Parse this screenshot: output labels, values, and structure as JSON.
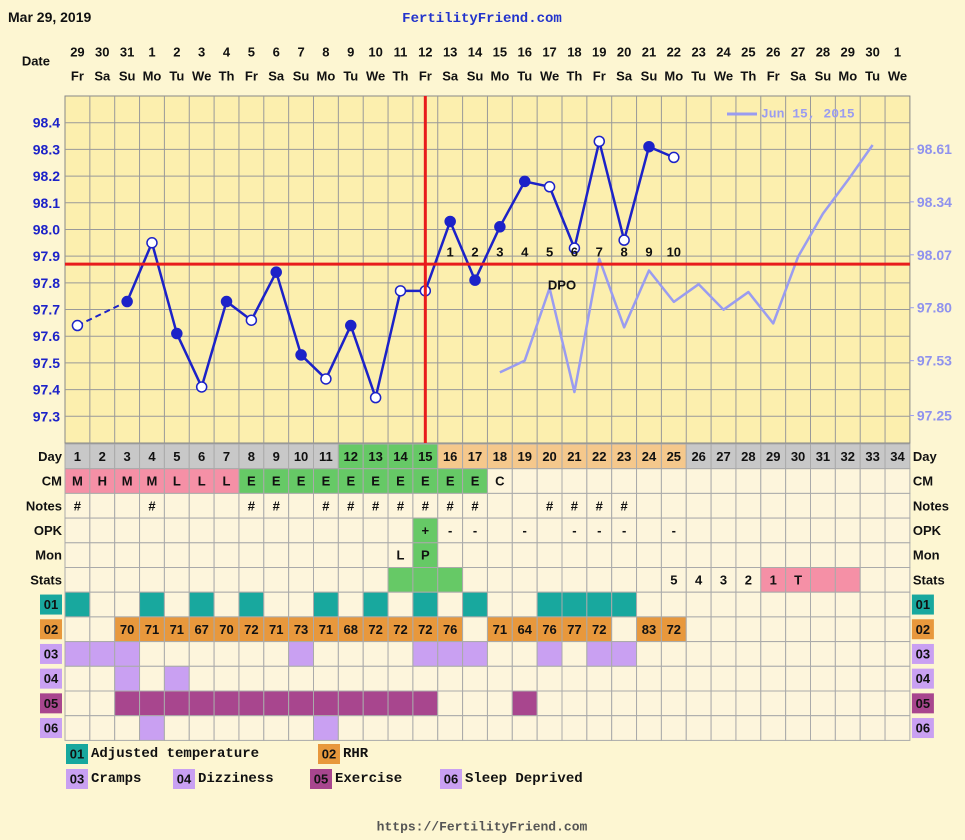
{
  "header": {
    "date": "Mar 29, 2019",
    "site": "FertilityFriend.com",
    "footer": "https://FertilityFriend.com"
  },
  "chart_data": {
    "type": "line",
    "x_label": "Date",
    "categories": [
      "29",
      "30",
      "31",
      "1",
      "2",
      "3",
      "4",
      "5",
      "6",
      "7",
      "8",
      "9",
      "10",
      "11",
      "12",
      "13",
      "14",
      "15",
      "16",
      "17",
      "18",
      "19",
      "20",
      "21",
      "22",
      "23",
      "24",
      "25",
      "26",
      "27",
      "28",
      "29",
      "30",
      "1"
    ],
    "weekdays": [
      "Fr",
      "Sa",
      "Su",
      "Mo",
      "Tu",
      "We",
      "Th",
      "Fr",
      "Sa",
      "Su",
      "Mo",
      "Tu",
      "We",
      "Th",
      "Fr",
      "Sa",
      "Su",
      "Mo",
      "Tu",
      "We",
      "Th",
      "Fr",
      "Sa",
      "Su",
      "Mo",
      "Tu",
      "We",
      "Th",
      "Fr",
      "Sa",
      "Su",
      "Mo",
      "Tu",
      "We"
    ],
    "ylim": [
      97.2,
      98.5
    ],
    "yticks": [
      97.3,
      97.4,
      97.5,
      97.6,
      97.7,
      97.8,
      97.9,
      {
        "value": 98,
        "label": "98.0"
      },
      98.1,
      98.2,
      98.3,
      98.4
    ],
    "y2lim": [
      97.11,
      98.88
    ],
    "y2ticks": [
      97.25,
      97.53,
      {
        "value": 97.8,
        "label": "97.80"
      },
      98.07,
      98.34,
      98.61
    ],
    "grid": true,
    "coverline": 97.87,
    "coverline_color": "#e81c1c",
    "ovulation_day": 15,
    "dpo": [
      null,
      null,
      null,
      null,
      null,
      null,
      null,
      null,
      null,
      null,
      null,
      null,
      null,
      null,
      null,
      1,
      2,
      3,
      4,
      5,
      6,
      7,
      8,
      9,
      10,
      null,
      null,
      null,
      null,
      null,
      null,
      null,
      null,
      null
    ],
    "dpo_label": "DPO",
    "series": [
      {
        "color": "#1c22c8",
        "values": [
          97.64,
          null,
          97.73,
          97.95,
          97.61,
          97.41,
          97.73,
          97.66,
          97.84,
          97.53,
          97.44,
          97.64,
          97.37,
          97.77,
          97.77,
          98.03,
          97.81,
          98.01,
          98.18,
          98.16,
          97.93,
          98.33,
          97.96,
          98.31,
          98.27,
          null,
          null,
          null,
          null,
          null,
          null,
          null,
          null,
          null
        ],
        "open": [
          true,
          false,
          false,
          true,
          false,
          true,
          false,
          true,
          false,
          false,
          true,
          false,
          true,
          true,
          true,
          false,
          false,
          false,
          false,
          true,
          true,
          true,
          true,
          false,
          true,
          false,
          false,
          false,
          false,
          false,
          false,
          false,
          false,
          false
        ]
      },
      {
        "name": "Jun 15, 2015",
        "color": "#9a9cf0",
        "axis": "y2",
        "values": [
          null,
          null,
          null,
          null,
          null,
          null,
          null,
          null,
          null,
          null,
          null,
          null,
          null,
          null,
          null,
          null,
          null,
          97.47,
          97.53,
          97.9,
          97.37,
          98.05,
          97.7,
          97.99,
          97.83,
          97.92,
          97.79,
          97.88,
          97.72,
          98.06,
          98.28,
          98.45,
          98.63,
          null
        ]
      }
    ]
  },
  "table": {
    "rows": [
      {
        "label": "Day",
        "values": [
          1,
          2,
          3,
          4,
          5,
          6,
          7,
          8,
          9,
          10,
          11,
          12,
          13,
          14,
          15,
          16,
          17,
          18,
          19,
          20,
          21,
          22,
          23,
          24,
          25,
          26,
          27,
          28,
          29,
          30,
          31,
          32,
          33,
          34
        ],
        "fills": [
          "#c8c8c8",
          "#c8c8c8",
          "#c8c8c8",
          "#c8c8c8",
          "#c8c8c8",
          "#c8c8c8",
          "#c8c8c8",
          "#c8c8c8",
          "#c8c8c8",
          "#c8c8c8",
          "#c8c8c8",
          "#66c966",
          "#66c966",
          "#66c966",
          "#66c966",
          "#f5c88c",
          "#f5c88c",
          "#f5c88c",
          "#f5c88c",
          "#f5c88c",
          "#f5c88c",
          "#f5c88c",
          "#f5c88c",
          "#f5c88c",
          "#f5c88c",
          "#c8c8c8",
          "#c8c8c8",
          "#c8c8c8",
          "#c8c8c8",
          "#c8c8c8",
          "#c8c8c8",
          "#c8c8c8",
          "#c8c8c8",
          "#c8c8c8"
        ]
      },
      {
        "label": "CM",
        "values": [
          "M",
          "H",
          "M",
          "M",
          "L",
          "L",
          "L",
          "E",
          "E",
          "E",
          "E",
          "E",
          "E",
          "E",
          "E",
          "E",
          "E",
          "C",
          null,
          null,
          null,
          null,
          null,
          null,
          null,
          null,
          null,
          null,
          null,
          null,
          null,
          null,
          null,
          null
        ],
        "fills": [
          "#f590a6",
          "#f590a6",
          "#f590a6",
          "#f590a6",
          "#f590a6",
          "#f590a6",
          "#f590a6",
          "#66c966",
          "#66c966",
          "#66c966",
          "#66c966",
          "#66c966",
          "#66c966",
          "#66c966",
          "#66c966",
          "#66c966",
          "#66c966",
          null,
          null,
          null,
          null,
          null,
          null,
          null,
          null,
          null,
          null,
          null,
          null,
          null,
          null,
          null,
          null,
          null
        ]
      },
      {
        "label": "Notes",
        "values": [
          "#",
          null,
          null,
          "#",
          null,
          null,
          null,
          "#",
          "#",
          null,
          "#",
          "#",
          "#",
          "#",
          "#",
          "#",
          "#",
          null,
          null,
          "#",
          "#",
          "#",
          "#",
          null,
          null,
          null,
          null,
          null,
          null,
          null,
          null,
          null,
          null,
          null
        ]
      },
      {
        "label": "OPK",
        "values": [
          null,
          null,
          null,
          null,
          null,
          null,
          null,
          null,
          null,
          null,
          null,
          null,
          null,
          null,
          "+",
          "-",
          "-",
          null,
          "-",
          null,
          "-",
          "-",
          "-",
          null,
          "-",
          null,
          null,
          null,
          null,
          null,
          null,
          null,
          null,
          null
        ],
        "fills": [
          null,
          null,
          null,
          null,
          null,
          null,
          null,
          null,
          null,
          null,
          null,
          null,
          null,
          null,
          "#66c966",
          null,
          null,
          null,
          null,
          null,
          null,
          null,
          null,
          null,
          null,
          null,
          null,
          null,
          null,
          null,
          null,
          null,
          null,
          null
        ]
      },
      {
        "label": "Mon",
        "values": [
          null,
          null,
          null,
          null,
          null,
          null,
          null,
          null,
          null,
          null,
          null,
          null,
          null,
          "L",
          "P",
          null,
          null,
          null,
          null,
          null,
          null,
          null,
          null,
          null,
          null,
          null,
          null,
          null,
          null,
          null,
          null,
          null,
          null,
          null
        ],
        "fills": [
          null,
          null,
          null,
          null,
          null,
          null,
          null,
          null,
          null,
          null,
          null,
          null,
          null,
          null,
          "#66c966",
          null,
          null,
          null,
          null,
          null,
          null,
          null,
          null,
          null,
          null,
          null,
          null,
          null,
          null,
          null,
          null,
          null,
          null,
          null
        ]
      },
      {
        "label": "Stats",
        "values": [
          null,
          null,
          null,
          null,
          null,
          null,
          null,
          null,
          null,
          null,
          null,
          null,
          null,
          null,
          null,
          null,
          null,
          null,
          null,
          null,
          null,
          null,
          null,
          null,
          5,
          4,
          3,
          2,
          1,
          "T",
          null,
          null,
          null,
          null
        ],
        "fills": [
          null,
          null,
          null,
          null,
          null,
          null,
          null,
          null,
          null,
          null,
          null,
          null,
          null,
          "#66c966",
          "#66c966",
          "#66c966",
          null,
          null,
          null,
          null,
          null,
          null,
          null,
          null,
          null,
          null,
          null,
          null,
          "#f590a6",
          "#f590a6",
          "#f590a6",
          "#f590a6",
          null,
          null
        ]
      }
    ],
    "codes": [
      {
        "code": "01",
        "name": "Adjusted temperature",
        "color": "#18a89e",
        "days": [
          1,
          4,
          6,
          8,
          11,
          13,
          15,
          17,
          20,
          21,
          22,
          23
        ]
      },
      {
        "code": "02",
        "name": "RHR",
        "color": "#e8983c",
        "values": [
          null,
          null,
          70,
          71,
          71,
          67,
          70,
          72,
          71,
          73,
          71,
          68,
          72,
          72,
          72,
          76,
          null,
          71,
          64,
          76,
          77,
          72,
          null,
          83,
          72,
          null,
          null,
          null,
          null,
          null,
          null,
          null,
          null,
          null
        ]
      },
      {
        "code": "03",
        "name": "Cramps",
        "color": "#c9a0f2",
        "days": [
          1,
          2,
          3,
          10,
          15,
          16,
          17,
          20,
          22,
          23
        ]
      },
      {
        "code": "04",
        "name": "Dizziness",
        "color": "#c9a0f2",
        "days": [
          3,
          5
        ]
      },
      {
        "code": "05",
        "name": "Exercise",
        "color": "#a8468e",
        "days": [
          3,
          4,
          5,
          6,
          7,
          8,
          9,
          10,
          11,
          12,
          13,
          14,
          15,
          19
        ]
      },
      {
        "code": "06",
        "name": "Sleep Deprived",
        "color": "#c9a0f2",
        "days": [
          4,
          11
        ]
      }
    ]
  }
}
